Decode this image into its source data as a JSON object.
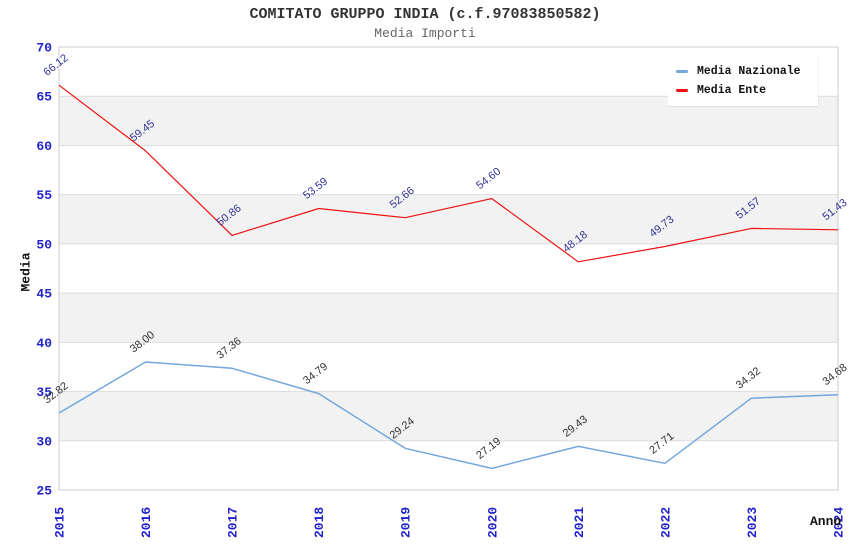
{
  "header": {
    "title": "COMITATO GRUPPO INDIA (c.f.97083850582)",
    "subtitle": "Media Importi"
  },
  "axes": {
    "y_label": "Media",
    "x_label": "Anno"
  },
  "legend": {
    "items": [
      {
        "label": "Media Nazionale",
        "color": "#74a7dc"
      },
      {
        "label": "Media Ente",
        "color": "#ee1111"
      }
    ]
  },
  "colors": {
    "axis_tick_text": "#2222cc",
    "band_fill": "#f2f2f2",
    "gridline": "#dddddd",
    "plot_border": "#cccccc",
    "title_text": "#333333",
    "subtitle_text": "#666666"
  },
  "chart_data": {
    "type": "line",
    "title": "COMITATO GRUPPO INDIA (c.f.97083850582)",
    "subtitle": "Media Importi",
    "xlabel": "Anno",
    "ylabel": "Media",
    "x": [
      "2015",
      "2016",
      "2017",
      "2018",
      "2019",
      "2020",
      "2021",
      "2022",
      "2023",
      "2024"
    ],
    "series": [
      {
        "name": "Media Nazionale",
        "color": "#74a7dc",
        "label_color": "#333333",
        "values": [
          32.82,
          38.0,
          37.36,
          34.79,
          29.24,
          27.19,
          29.43,
          27.71,
          34.32,
          34.68
        ]
      },
      {
        "name": "Media Ente",
        "color": "#ee1111",
        "label_color": "#333399",
        "values": [
          66.12,
          59.45,
          50.86,
          53.59,
          52.66,
          54.6,
          48.18,
          49.73,
          51.57,
          51.43
        ]
      }
    ],
    "ylim": [
      25,
      70
    ],
    "ytick_step": 5,
    "grid": "alternating horizontal bands (gray on 30-35, 40-45, 50-55, 60-65)",
    "legend_position": "top-right inside plot",
    "data_labels": "shown, rotated ~38deg, two decimals"
  }
}
